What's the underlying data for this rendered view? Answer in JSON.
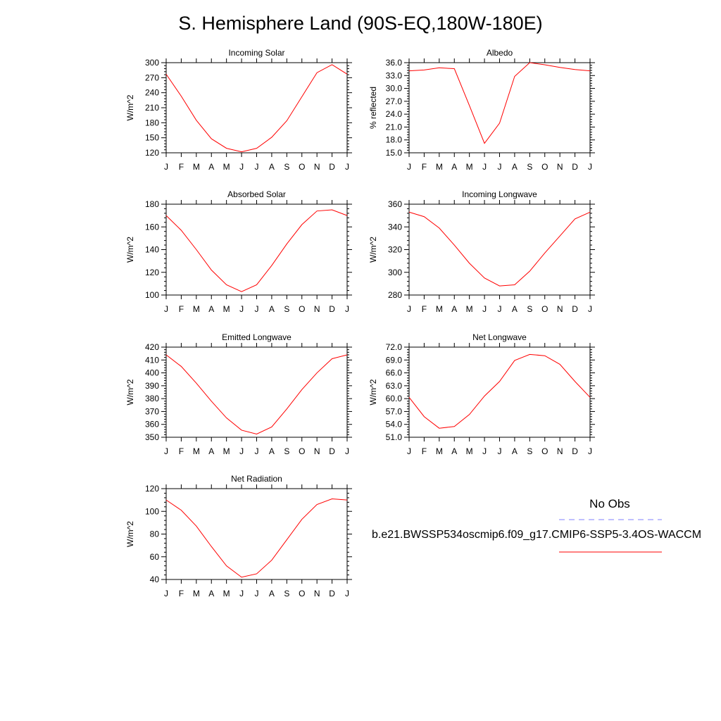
{
  "page": {
    "title": "S. Hemisphere Land (90S-EQ,180W-180E)"
  },
  "legend": {
    "obs_label": "No Obs",
    "obs_color": "#8080ff",
    "case_label": "b.e21.BWSSP534oscmip6.f09_g17.CMIP6-SSP5-3.4OS-WACCM",
    "case_color": "#ff0000"
  },
  "chart_data": [
    {
      "type": "line",
      "title": "Incoming Solar",
      "ylabel": "W/m^2",
      "ylim": [
        120,
        300
      ],
      "yticks": [
        120,
        150,
        180,
        210,
        240,
        270,
        300
      ],
      "ytick_labels": [
        "120",
        "150",
        "180",
        "210",
        "240",
        "270",
        "300"
      ],
      "categories": [
        "J",
        "F",
        "M",
        "A",
        "M",
        "J",
        "J",
        "A",
        "S",
        "O",
        "N",
        "D",
        "J"
      ],
      "series": [
        {
          "values": [
            277,
            233,
            185,
            148,
            129,
            122,
            129,
            151,
            184,
            232,
            280,
            296,
            277
          ]
        }
      ]
    },
    {
      "type": "line",
      "title": "Albedo",
      "ylabel": "% reflected",
      "ylim": [
        15,
        36
      ],
      "yticks": [
        15,
        18,
        21,
        24,
        27,
        30,
        33,
        36
      ],
      "ytick_labels": [
        "15.0",
        "18.0",
        "21.0",
        "24.0",
        "27.0",
        "30.0",
        "33.0",
        "36.0"
      ],
      "categories": [
        "J",
        "F",
        "M",
        "A",
        "M",
        "J",
        "J",
        "A",
        "S",
        "O",
        "N",
        "D",
        "J"
      ],
      "series": [
        {
          "values": [
            34.1,
            34.3,
            34.8,
            34.6,
            26.0,
            17.2,
            21.9,
            32.8,
            36.0,
            35.5,
            34.9,
            34.4,
            34.1
          ]
        }
      ]
    },
    {
      "type": "line",
      "title": "Absorbed Solar",
      "ylabel": "W/m^2",
      "ylim": [
        100,
        180
      ],
      "yticks": [
        100,
        120,
        140,
        160,
        180
      ],
      "ytick_labels": [
        "100",
        "120",
        "140",
        "160",
        "180"
      ],
      "categories": [
        "J",
        "F",
        "M",
        "A",
        "M",
        "J",
        "J",
        "A",
        "S",
        "O",
        "N",
        "D",
        "J"
      ],
      "series": [
        {
          "values": [
            170,
            157,
            140,
            122,
            109,
            103,
            109,
            126,
            145,
            162,
            174,
            175,
            170
          ]
        }
      ]
    },
    {
      "type": "line",
      "title": "Incoming Longwave",
      "ylabel": "W/m^2",
      "ylim": [
        280,
        360
      ],
      "yticks": [
        280,
        300,
        320,
        340,
        360
      ],
      "ytick_labels": [
        "280",
        "300",
        "320",
        "340",
        "360"
      ],
      "categories": [
        "J",
        "F",
        "M",
        "A",
        "M",
        "J",
        "J",
        "A",
        "S",
        "O",
        "N",
        "D",
        "J"
      ],
      "series": [
        {
          "values": [
            353,
            349,
            339,
            324,
            308,
            295,
            288,
            289,
            301,
            317,
            332,
            347,
            353
          ]
        }
      ]
    },
    {
      "type": "line",
      "title": "Emitted Longwave",
      "ylabel": "W/m^2",
      "ylim": [
        350,
        420
      ],
      "yticks": [
        350,
        360,
        370,
        380,
        390,
        400,
        410,
        420
      ],
      "ytick_labels": [
        "350",
        "360",
        "370",
        "380",
        "390",
        "400",
        "410",
        "420"
      ],
      "categories": [
        "J",
        "F",
        "M",
        "A",
        "M",
        "J",
        "J",
        "A",
        "S",
        "O",
        "N",
        "D",
        "J"
      ],
      "series": [
        {
          "values": [
            414,
            405,
            392,
            378,
            365,
            355.5,
            352.5,
            358,
            372,
            387,
            400,
            411,
            414
          ]
        }
      ]
    },
    {
      "type": "line",
      "title": "Net Longwave",
      "ylabel": "W/m^2",
      "ylim": [
        51,
        72
      ],
      "yticks": [
        51,
        54,
        57,
        60,
        63,
        66,
        69,
        72
      ],
      "ytick_labels": [
        "51.0",
        "54.0",
        "57.0",
        "60.0",
        "63.0",
        "66.0",
        "69.0",
        "72.0"
      ],
      "categories": [
        "J",
        "F",
        "M",
        "A",
        "M",
        "J",
        "J",
        "A",
        "S",
        "O",
        "N",
        "D",
        "J"
      ],
      "series": [
        {
          "values": [
            60.3,
            55.8,
            53.1,
            53.5,
            56.3,
            60.6,
            64.0,
            68.9,
            70.3,
            70.0,
            68.0,
            64.0,
            60.3
          ]
        }
      ]
    },
    {
      "type": "line",
      "title": "Net Radiation",
      "ylabel": "W/m^2",
      "ylim": [
        40,
        120
      ],
      "yticks": [
        40,
        60,
        80,
        100,
        120
      ],
      "ytick_labels": [
        "40",
        "60",
        "80",
        "100",
        "120"
      ],
      "categories": [
        "J",
        "F",
        "M",
        "A",
        "M",
        "J",
        "J",
        "A",
        "S",
        "O",
        "N",
        "D",
        "J"
      ],
      "series": [
        {
          "values": [
            110,
            101,
            87,
            69,
            52,
            42,
            45,
            57,
            75,
            93,
            106,
            111,
            110
          ]
        }
      ]
    }
  ]
}
